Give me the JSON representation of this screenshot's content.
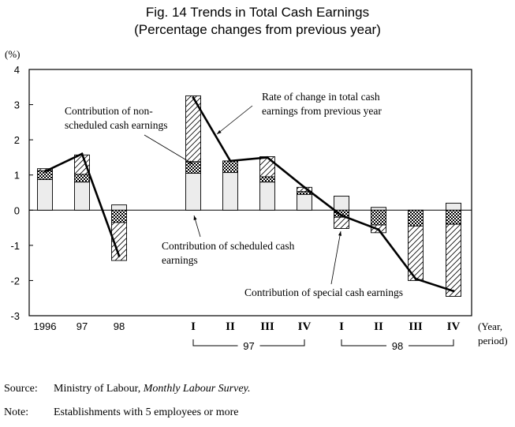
{
  "chart_data": {
    "type": "bar",
    "stacked": true,
    "title": "Fig. 14  Trends in Total Cash Earnings",
    "subtitle": "(Percentage changes from previous year)",
    "ylabel": "(%)",
    "xlabel": "(Year, period)",
    "xlabel_lines": [
      "(Year,",
      "period)"
    ],
    "ylim": [
      -3,
      4
    ],
    "yticks": [
      4,
      3,
      2,
      1,
      0,
      -1,
      -2,
      -3
    ],
    "categories": [
      "1996",
      "97",
      "98",
      "I",
      "II",
      "III",
      "IV",
      "I",
      "II",
      "III",
      "IV"
    ],
    "groups": [
      {
        "label": "97",
        "from": 3,
        "to": 6
      },
      {
        "label": "98",
        "from": 7,
        "to": 10
      }
    ],
    "series": [
      {
        "name": "Contribution of scheduled cash earnings",
        "pattern": "light-gray",
        "values": [
          0.87,
          0.8,
          0.15,
          1.05,
          1.07,
          0.8,
          0.45,
          0.4,
          0.08,
          0.0,
          0.2
        ]
      },
      {
        "name": "Contribution of non-scheduled cash earnings",
        "pattern": "crosshatch",
        "values": [
          0.25,
          0.22,
          -0.35,
          0.33,
          0.33,
          0.15,
          0.08,
          -0.2,
          -0.42,
          -0.45,
          -0.4
        ]
      },
      {
        "name": "Contribution of special cash earnings",
        "pattern": "diagonal",
        "values": [
          0.06,
          0.55,
          -1.08,
          1.87,
          0.0,
          0.57,
          0.12,
          -0.32,
          -0.22,
          -1.55,
          -2.05
        ]
      },
      {
        "name": "Rate of change in total cash earnings from previous year",
        "type": "line",
        "values": [
          1.1,
          1.6,
          -1.3,
          3.2,
          1.4,
          1.5,
          0.65,
          -0.15,
          -0.55,
          -1.95,
          -2.3
        ]
      }
    ],
    "annotations": [
      {
        "lines": [
          "Contribution of non-",
          "scheduled cash earnings"
        ]
      },
      {
        "lines": [
          "Rate of change in total cash",
          "earnings from previous year"
        ]
      },
      {
        "lines": [
          "Contribution of scheduled cash",
          "earnings"
        ]
      },
      {
        "lines": [
          "Contribution of special cash earnings"
        ]
      }
    ],
    "grid": false
  },
  "footer": {
    "source_label": "Source:",
    "source_text": "Ministry of Labour, ",
    "source_italic": "Monthly Labour Survey.",
    "note_label": "Note:",
    "note_text": "Establishments with 5 employees or more"
  }
}
